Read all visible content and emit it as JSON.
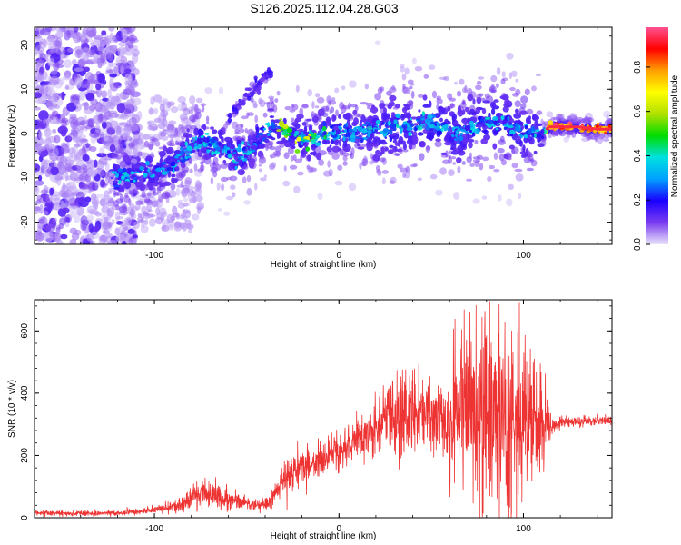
{
  "title": "S126.2025.112.04.28.G03",
  "colors": {
    "snr_line": "#ee3333",
    "axis": "#000000",
    "background": "#ffffff"
  },
  "chart_data": [
    {
      "type": "heatmap",
      "name": "spectrogram",
      "title": "",
      "xlabel": "Height of straight line (km)",
      "ylabel": "Frequency (Hz)",
      "xlim": [
        -165,
        148
      ],
      "ylim": [
        -25,
        24
      ],
      "x_ticks": [
        -100,
        0,
        100
      ],
      "y_ticks": [
        -20,
        -10,
        0,
        10,
        20
      ],
      "grid": false,
      "colorbar": {
        "label": "Normalized spectral amplitude",
        "range": [
          0.0,
          0.98
        ],
        "ticks": [
          0.0,
          0.2,
          0.4,
          0.6,
          0.8
        ],
        "colormap": [
          "#e9e4fb",
          "#7b3cf0",
          "#1a00ff",
          "#00a0ff",
          "#00e0e0",
          "#00dd00",
          "#b0e000",
          "#ffff00",
          "#ffa000",
          "#ff0000",
          "#ff5090"
        ]
      },
      "ridge_track": [
        [
          -120,
          -10
        ],
        [
          -110,
          -9.5
        ],
        [
          -100,
          -8.5
        ],
        [
          -90,
          -7
        ],
        [
          -82,
          -4
        ],
        [
          -78,
          -1
        ],
        [
          -70,
          -2
        ],
        [
          -62,
          -3.5
        ],
        [
          -55,
          -5
        ],
        [
          -45,
          -2.5
        ],
        [
          -38,
          1.5
        ],
        [
          -32,
          1.5
        ],
        [
          -28,
          0
        ],
        [
          -22,
          -1
        ],
        [
          -15,
          -1
        ],
        [
          -8,
          0
        ],
        [
          0,
          0
        ],
        [
          10,
          0.5
        ],
        [
          20,
          1
        ],
        [
          30,
          1.5
        ],
        [
          40,
          1.5
        ],
        [
          47,
          3
        ],
        [
          55,
          1.5
        ],
        [
          65,
          0
        ],
        [
          72,
          1.5
        ],
        [
          82,
          3
        ],
        [
          90,
          2
        ],
        [
          100,
          0.5
        ],
        [
          110,
          0
        ],
        [
          114,
          1.5
        ],
        [
          130,
          1.5
        ],
        [
          140,
          1
        ],
        [
          148,
          1
        ]
      ],
      "branch_track": [
        [
          -60,
          4
        ],
        [
          -50,
          8
        ],
        [
          -42,
          12
        ],
        [
          -37,
          14
        ]
      ]
    },
    {
      "type": "line",
      "name": "snr",
      "title": "",
      "xlabel": "Height of straight line (km)",
      "ylabel": "SNR (10 * v/v)",
      "xlim": [
        -165,
        148
      ],
      "ylim": [
        0,
        700
      ],
      "x_ticks": [
        -100,
        0,
        100
      ],
      "y_ticks": [
        0,
        200,
        400,
        600
      ],
      "grid": false,
      "envelope": {
        "x": [
          -165,
          -120,
          -100,
          -85,
          -75,
          -65,
          -55,
          -45,
          -38,
          -30,
          -20,
          -10,
          0,
          10,
          20,
          30,
          40,
          50,
          58,
          62,
          70,
          80,
          90,
          100,
          110,
          116,
          125,
          135,
          148
        ],
        "y": [
          15,
          15,
          25,
          40,
          80,
          70,
          50,
          40,
          45,
          130,
          170,
          180,
          210,
          250,
          290,
          330,
          340,
          330,
          320,
          330,
          320,
          330,
          320,
          310,
          300,
          300,
          310,
          310,
          310
        ],
        "amplitude": [
          8,
          8,
          10,
          20,
          45,
          40,
          25,
          15,
          20,
          45,
          55,
          55,
          55,
          60,
          80,
          120,
          130,
          110,
          120,
          200,
          230,
          250,
          260,
          210,
          140,
          25,
          15,
          15,
          15
        ]
      }
    }
  ]
}
